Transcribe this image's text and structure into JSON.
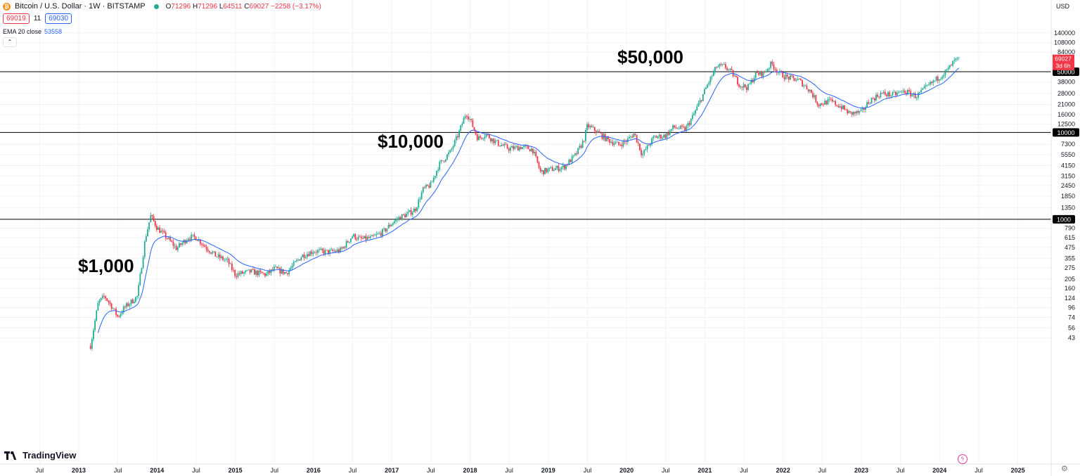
{
  "header": {
    "symbol_icon": "bitcoin-coin-icon",
    "title": "Bitcoin / U.S. Dollar · 1W · BITSTAMP",
    "live_indicator_color": "#22ab94",
    "open_label": "O",
    "open": "71296",
    "high_label": "H",
    "high": "71296",
    "low_label": "L",
    "low": "64511",
    "close_label": "C",
    "close": "69027",
    "change": "−2258 (−3.17%)"
  },
  "quote": {
    "bid": "69019",
    "spread": "11",
    "ask": "69030"
  },
  "indicator": {
    "label": "EMA 20 close",
    "value": "53558"
  },
  "price_scale": {
    "currency": "USD",
    "last_price": "69027",
    "countdown": "3d 6h"
  },
  "annotations": [
    "$1,000",
    "$10,000",
    "$50,000"
  ],
  "watermark": "TradingView",
  "colors": {
    "up": "#22ab94",
    "down": "#f23645",
    "ema": "#2962ff",
    "hline": "#000000",
    "label_bg": "#000000",
    "last_price_bg": "#f23645"
  },
  "chart_data": {
    "type": "candlestick",
    "timeframe": "1W",
    "scale": "log",
    "y_ticks": [
      43,
      56,
      74,
      96,
      124,
      160,
      205,
      275,
      355,
      475,
      615,
      790,
      1350,
      1850,
      2450,
      3150,
      4150,
      5550,
      7300,
      12500,
      16000,
      21000,
      28000,
      38000,
      84000,
      108000,
      140000
    ],
    "x_ticks": [
      "Jul",
      "2013",
      "Jul",
      "2014",
      "Jul",
      "2015",
      "Jul",
      "2016",
      "Jul",
      "2017",
      "Jul",
      "2018",
      "Jul",
      "2019",
      "Jul",
      "2020",
      "Jul",
      "2021",
      "Jul",
      "2022",
      "Jul",
      "2023",
      "Jul",
      "2024",
      "Jul",
      "2025"
    ],
    "x_tick_dates": [
      2012.5,
      2013,
      2013.5,
      2014,
      2014.5,
      2015,
      2015.5,
      2016,
      2016.5,
      2017,
      2017.5,
      2018,
      2018.5,
      2019,
      2019.5,
      2020,
      2020.5,
      2021,
      2021.5,
      2022,
      2022.5,
      2023,
      2023.5,
      2024,
      2024.5,
      2025
    ],
    "horizontal_lines": [
      {
        "value": 1000,
        "label": "1000"
      },
      {
        "value": 10000,
        "label": "10000"
      },
      {
        "value": 50000,
        "label": "50000"
      }
    ],
    "price_path": [
      [
        2013.15,
        35
      ],
      [
        2013.25,
        110
      ],
      [
        2013.33,
        130
      ],
      [
        2013.42,
        100
      ],
      [
        2013.5,
        75
      ],
      [
        2013.58,
        95
      ],
      [
        2013.75,
        130
      ],
      [
        2013.85,
        600
      ],
      [
        2013.92,
        1100
      ],
      [
        2014.0,
        800
      ],
      [
        2014.1,
        650
      ],
      [
        2014.25,
        460
      ],
      [
        2014.4,
        620
      ],
      [
        2014.5,
        620
      ],
      [
        2014.6,
        500
      ],
      [
        2014.75,
        380
      ],
      [
        2014.9,
        330
      ],
      [
        2015.0,
        230
      ],
      [
        2015.2,
        250
      ],
      [
        2015.4,
        230
      ],
      [
        2015.5,
        270
      ],
      [
        2015.65,
        240
      ],
      [
        2015.85,
        380
      ],
      [
        2016.0,
        430
      ],
      [
        2016.2,
        420
      ],
      [
        2016.35,
        440
      ],
      [
        2016.5,
        650
      ],
      [
        2016.6,
        590
      ],
      [
        2016.75,
        610
      ],
      [
        2016.9,
        730
      ],
      [
        2017.0,
        900
      ],
      [
        2017.1,
        1050
      ],
      [
        2017.2,
        1150
      ],
      [
        2017.3,
        1300
      ],
      [
        2017.4,
        2200
      ],
      [
        2017.5,
        2500
      ],
      [
        2017.6,
        4200
      ],
      [
        2017.75,
        6000
      ],
      [
        2017.85,
        9500
      ],
      [
        2017.95,
        17000
      ],
      [
        2018.0,
        14000
      ],
      [
        2018.1,
        8500
      ],
      [
        2018.2,
        9500
      ],
      [
        2018.35,
        7500
      ],
      [
        2018.5,
        6500
      ],
      [
        2018.65,
        6800
      ],
      [
        2018.8,
        6400
      ],
      [
        2018.9,
        3500
      ],
      [
        2019.0,
        3700
      ],
      [
        2019.2,
        4000
      ],
      [
        2019.35,
        5500
      ],
      [
        2019.45,
        8000
      ],
      [
        2019.5,
        12000
      ],
      [
        2019.6,
        10500
      ],
      [
        2019.75,
        8300
      ],
      [
        2019.9,
        7200
      ],
      [
        2020.0,
        8000
      ],
      [
        2020.1,
        9800
      ],
      [
        2020.2,
        5500
      ],
      [
        2020.35,
        8800
      ],
      [
        2020.5,
        9200
      ],
      [
        2020.6,
        11500
      ],
      [
        2020.75,
        10800
      ],
      [
        2020.85,
        15500
      ],
      [
        2020.95,
        24000
      ],
      [
        2021.05,
        38000
      ],
      [
        2021.15,
        57000
      ],
      [
        2021.25,
        58000
      ],
      [
        2021.35,
        48000
      ],
      [
        2021.45,
        35000
      ],
      [
        2021.55,
        33000
      ],
      [
        2021.65,
        47000
      ],
      [
        2021.75,
        48000
      ],
      [
        2021.85,
        62000
      ],
      [
        2021.95,
        48000
      ],
      [
        2022.05,
        43000
      ],
      [
        2022.2,
        40000
      ],
      [
        2022.35,
        30000
      ],
      [
        2022.45,
        21000
      ],
      [
        2022.6,
        23000
      ],
      [
        2022.75,
        19500
      ],
      [
        2022.85,
        16500
      ],
      [
        2023.0,
        17000
      ],
      [
        2023.1,
        23000
      ],
      [
        2023.25,
        28000
      ],
      [
        2023.4,
        27000
      ],
      [
        2023.55,
        30000
      ],
      [
        2023.7,
        26000
      ],
      [
        2023.85,
        34000
      ],
      [
        2024.0,
        44000
      ],
      [
        2024.1,
        52000
      ],
      [
        2024.2,
        68000
      ],
      [
        2024.25,
        69027
      ]
    ]
  }
}
